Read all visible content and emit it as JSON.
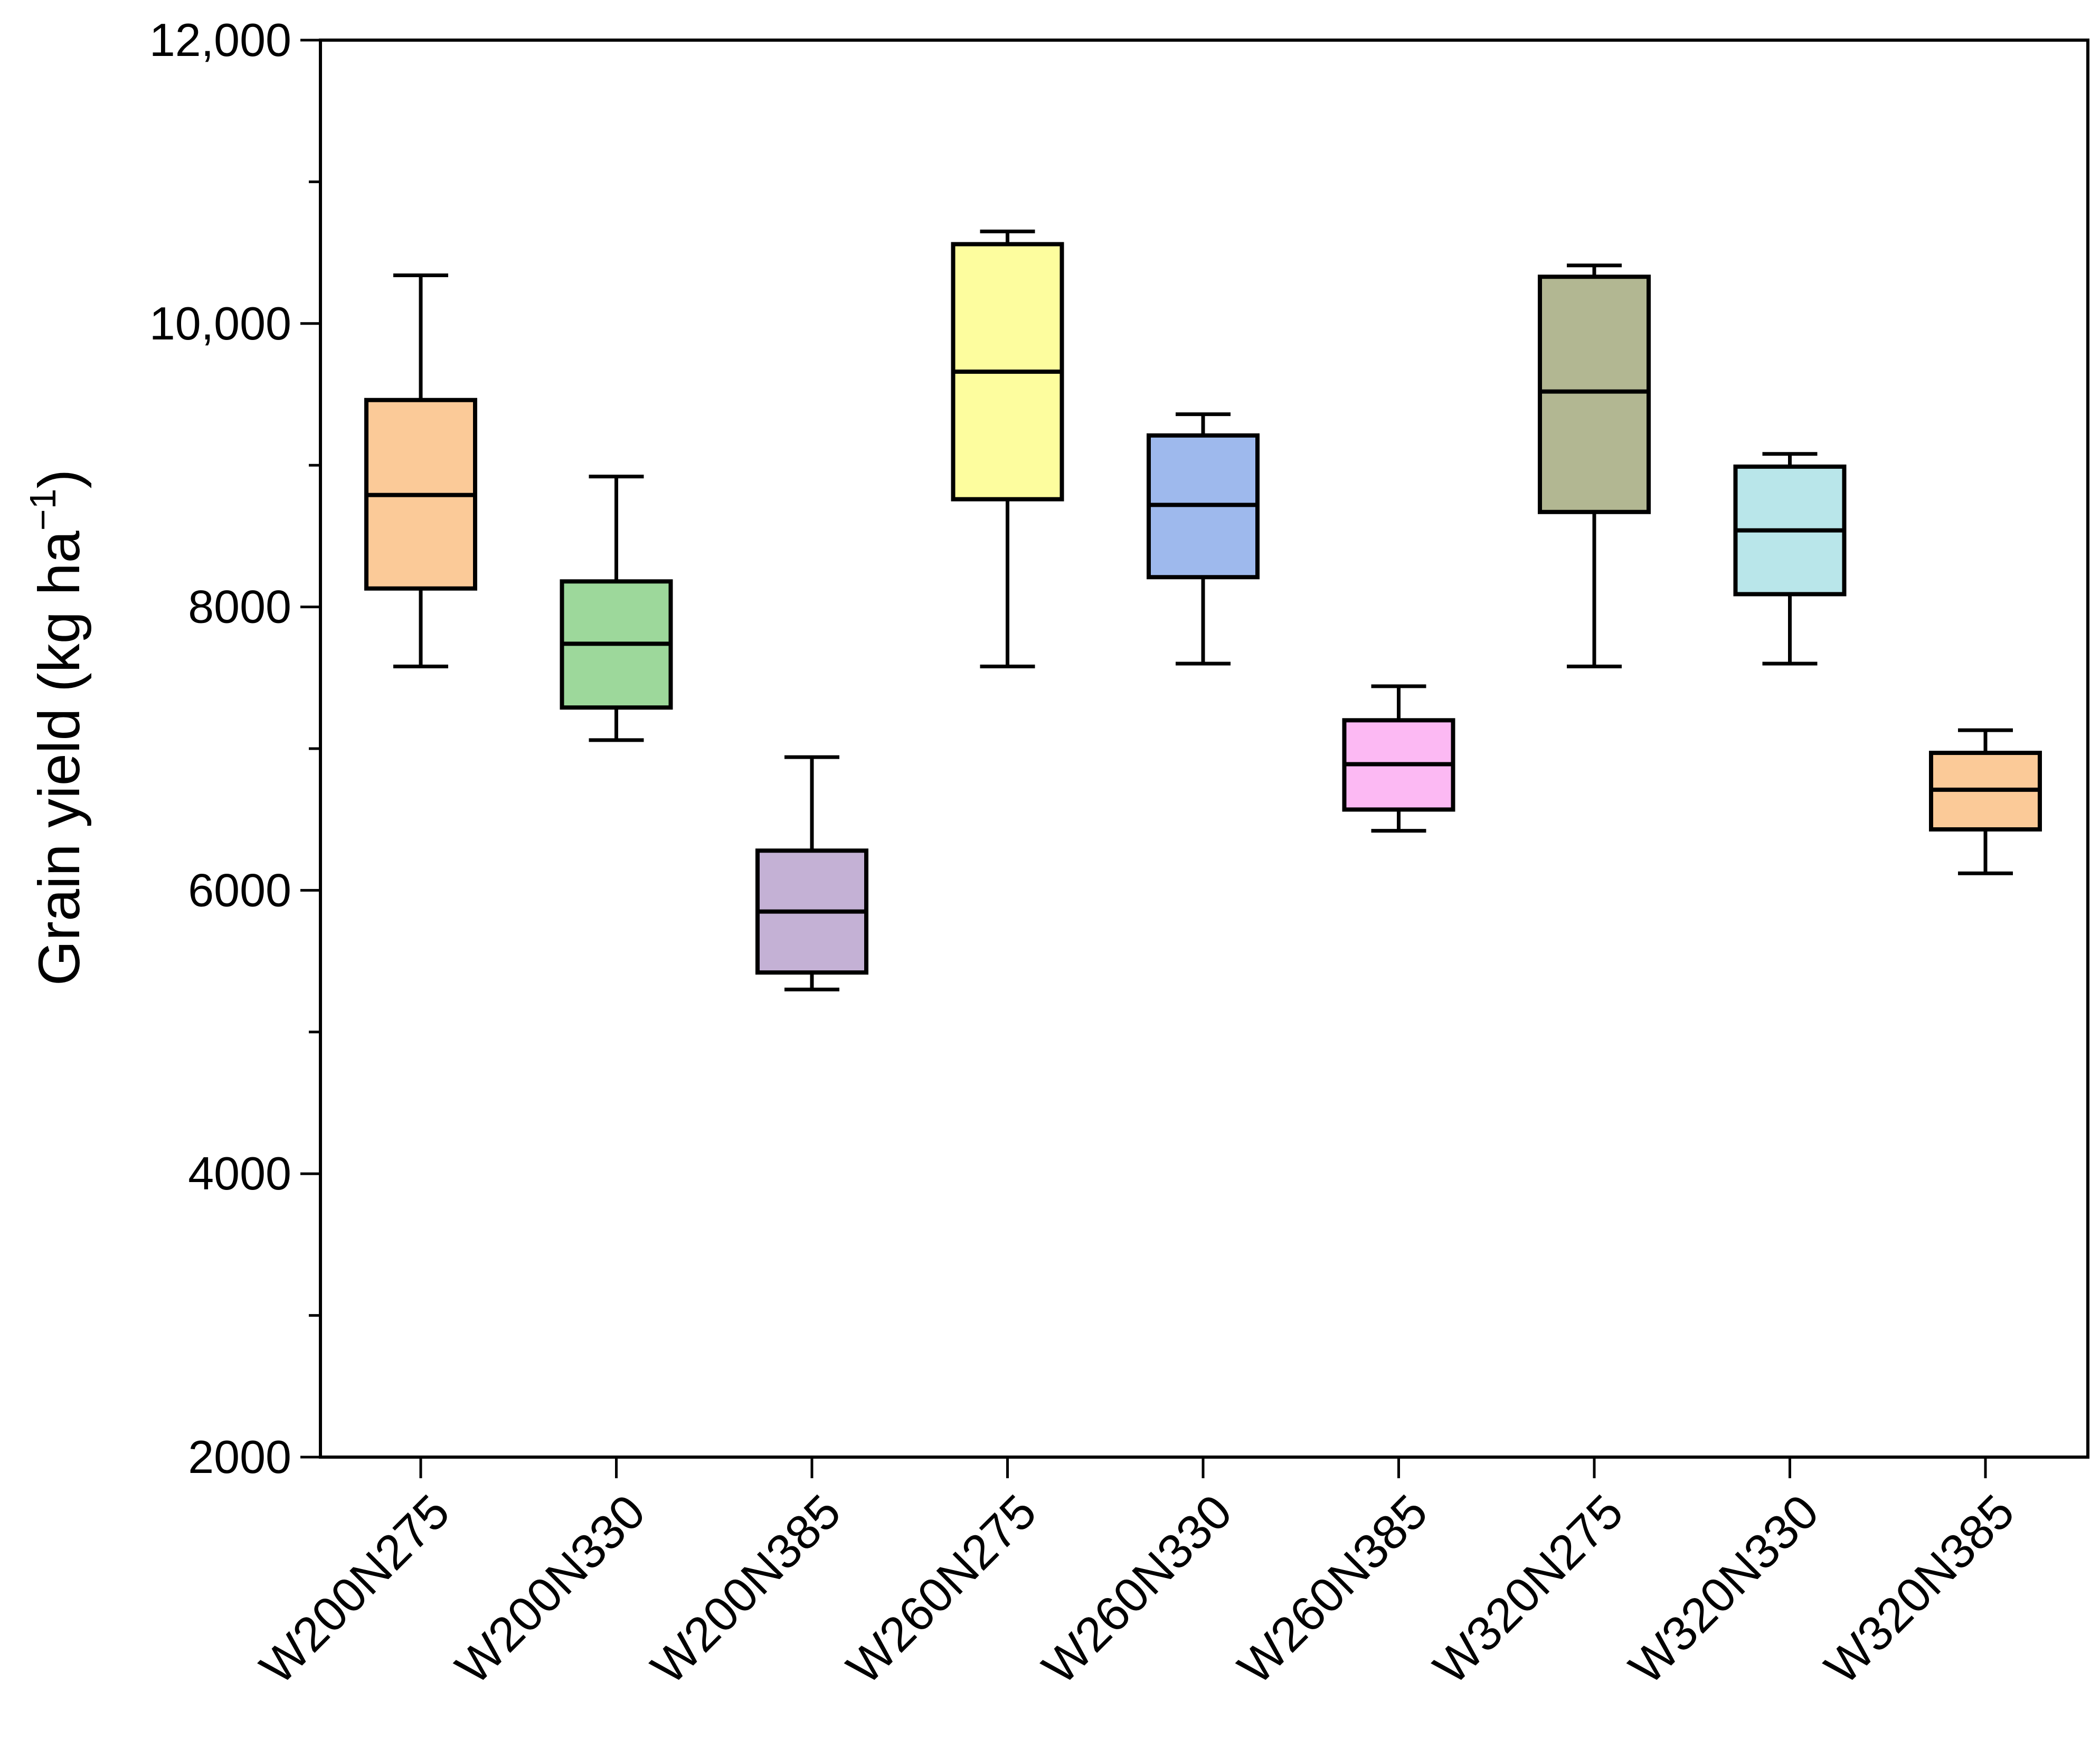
{
  "chart_data": {
    "type": "box",
    "title": "",
    "xlabel": "",
    "ylabel": "Grain yield (kg ha",
    "ylabel_superscript": "−1",
    "ylabel_close": ")",
    "ylim": [
      2000,
      12000
    ],
    "yticks": [
      2000,
      4000,
      6000,
      8000,
      10000,
      12000
    ],
    "ytick_labels": [
      "2000",
      "4000",
      "6000",
      "8000",
      "10,000",
      "12,000"
    ],
    "yminor_ticks": [
      3000,
      5000,
      7000,
      9000,
      11000
    ],
    "categories": [
      "W200N275",
      "W200N330",
      "W200N385",
      "W260N275",
      "W260N330",
      "W260N385",
      "W320N275",
      "W320N330",
      "W320N385"
    ],
    "boxes": [
      {
        "name": "W200N275",
        "min": 7580,
        "q1": 8130,
        "median": 8790,
        "q3": 9460,
        "max": 10340,
        "color": "#FBCA98"
      },
      {
        "name": "W200N330",
        "min": 7060,
        "q1": 7290,
        "median": 7740,
        "q3": 8180,
        "max": 8920,
        "color": "#9DD89B"
      },
      {
        "name": "W200N385",
        "min": 5300,
        "q1": 5420,
        "median": 5850,
        "q3": 6280,
        "max": 6940,
        "color": "#C4B1D5"
      },
      {
        "name": "W260N275",
        "min": 7580,
        "q1": 8760,
        "median": 9660,
        "q3": 10560,
        "max": 10650,
        "color": "#FDFD9E"
      },
      {
        "name": "W260N330",
        "min": 7600,
        "q1": 8210,
        "median": 8720,
        "q3": 9210,
        "max": 9360,
        "color": "#9EB9ED"
      },
      {
        "name": "W260N385",
        "min": 6420,
        "q1": 6570,
        "median": 6890,
        "q3": 7200,
        "max": 7440,
        "color": "#FCB9F3"
      },
      {
        "name": "W320N275",
        "min": 7580,
        "q1": 8670,
        "median": 9520,
        "q3": 10330,
        "max": 10410,
        "color": "#B2B792"
      },
      {
        "name": "W320N330",
        "min": 7600,
        "q1": 8090,
        "median": 8540,
        "q3": 8990,
        "max": 9080,
        "color": "#B9E6EA"
      },
      {
        "name": "W320N385",
        "min": 6120,
        "q1": 6430,
        "median": 6710,
        "q3": 6970,
        "max": 7130,
        "color": "#FBCA98"
      }
    ]
  }
}
